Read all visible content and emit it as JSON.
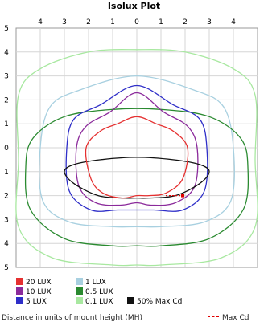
{
  "chart_data": {
    "type": "line",
    "title": "Isolux Plot",
    "xlim": [
      -5,
      5
    ],
    "ylim": [
      -5,
      5
    ],
    "x_ticks": [
      "4",
      "3",
      "2",
      "1",
      "0",
      "1",
      "2",
      "3",
      "4"
    ],
    "y_ticks": [
      "5",
      "4",
      "3",
      "2",
      "1",
      "0",
      "1",
      "2",
      "3",
      "4",
      "5"
    ],
    "grid": true,
    "legend_placement": "bottom",
    "series": [
      {
        "name": "20 LUX",
        "color": "#e53030",
        "points": [
          [
            -2.1,
            0.0
          ],
          [
            -1.5,
            0.7
          ],
          [
            -0.8,
            1.0
          ],
          [
            0,
            1.3
          ],
          [
            0.8,
            1.0
          ],
          [
            1.5,
            0.7
          ],
          [
            2.1,
            0.0
          ],
          [
            1.9,
            -1.3
          ],
          [
            1.2,
            -1.9
          ],
          [
            0.5,
            -2.0
          ],
          [
            0,
            -2.0
          ],
          [
            -0.6,
            -2.1
          ],
          [
            -1.4,
            -1.9
          ],
          [
            -1.9,
            -1.3
          ]
        ]
      },
      {
        "name": "10 LUX",
        "color": "#8b2a9b",
        "points": [
          [
            -2.5,
            0.0
          ],
          [
            -2.1,
            0.9
          ],
          [
            -1.1,
            1.5
          ],
          [
            0,
            2.3
          ],
          [
            1.1,
            1.5
          ],
          [
            2.1,
            0.9
          ],
          [
            2.5,
            0.0
          ],
          [
            2.4,
            -1.6
          ],
          [
            1.6,
            -2.3
          ],
          [
            0.6,
            -2.4
          ],
          [
            0,
            -2.3
          ],
          [
            -0.7,
            -2.4
          ],
          [
            -1.7,
            -2.3
          ],
          [
            -2.4,
            -1.6
          ]
        ]
      },
      {
        "name": "5 LUX",
        "color": "#2e2ec8",
        "points": [
          [
            -2.9,
            0.0
          ],
          [
            -2.6,
            1.2
          ],
          [
            -1.5,
            1.8
          ],
          [
            0,
            2.6
          ],
          [
            1.5,
            1.8
          ],
          [
            2.6,
            1.2
          ],
          [
            2.9,
            0.0
          ],
          [
            2.8,
            -1.8
          ],
          [
            1.9,
            -2.6
          ],
          [
            0.7,
            -2.6
          ],
          [
            0,
            -2.6
          ],
          [
            -0.8,
            -2.6
          ],
          [
            -1.9,
            -2.6
          ],
          [
            -2.8,
            -1.8
          ]
        ]
      },
      {
        "name": "1 LUX",
        "color": "#a8d0e0",
        "points": [
          [
            -4.0,
            0.0
          ],
          [
            -3.6,
            1.7
          ],
          [
            -2.4,
            2.4
          ],
          [
            0,
            3.0
          ],
          [
            2.4,
            2.4
          ],
          [
            3.6,
            1.7
          ],
          [
            4.0,
            0.0
          ],
          [
            3.9,
            -2.2
          ],
          [
            2.8,
            -3.1
          ],
          [
            1.0,
            -3.3
          ],
          [
            0,
            -3.3
          ],
          [
            -1.0,
            -3.3
          ],
          [
            -2.8,
            -3.1
          ],
          [
            -3.9,
            -2.2
          ]
        ]
      },
      {
        "name": "0.5 LUX",
        "color": "#2a8a30",
        "points": [
          [
            -4.6,
            -0.8
          ],
          [
            -4.3,
            0.4
          ],
          [
            -3.0,
            1.3
          ],
          [
            -1.0,
            1.6
          ],
          [
            1.0,
            1.6
          ],
          [
            3.0,
            1.3
          ],
          [
            4.3,
            0.4
          ],
          [
            4.6,
            -0.8
          ],
          [
            4.4,
            -2.6
          ],
          [
            3.0,
            -3.8
          ],
          [
            1.0,
            -4.1
          ],
          [
            0,
            -4.1
          ],
          [
            -1.0,
            -4.1
          ],
          [
            -3.0,
            -3.8
          ],
          [
            -4.4,
            -2.6
          ]
        ]
      },
      {
        "name": "0.1 LUX",
        "color": "#a8e8a0",
        "points": [
          [
            -4.9,
            -0.5
          ],
          [
            -4.9,
            2.2
          ],
          [
            -4.0,
            3.3
          ],
          [
            -2.0,
            4.0
          ],
          [
            0,
            4.1
          ],
          [
            2.0,
            4.0
          ],
          [
            4.0,
            3.3
          ],
          [
            4.9,
            2.2
          ],
          [
            4.9,
            -0.5
          ],
          [
            4.9,
            -3.3
          ],
          [
            3.5,
            -4.6
          ],
          [
            1.0,
            -4.9
          ],
          [
            0,
            -4.9
          ],
          [
            -1.0,
            -4.9
          ],
          [
            -3.5,
            -4.6
          ],
          [
            -4.9,
            -3.3
          ]
        ]
      },
      {
        "name": "50% Max Cd",
        "color": "#111111",
        "points": [
          [
            -3.0,
            -1.0
          ],
          [
            -2.6,
            -0.7
          ],
          [
            -1.5,
            -0.5
          ],
          [
            0,
            -0.4
          ],
          [
            1.5,
            -0.5
          ],
          [
            2.6,
            -0.7
          ],
          [
            3.0,
            -1.0
          ],
          [
            2.6,
            -1.5
          ],
          [
            1.6,
            -2.0
          ],
          [
            0.5,
            -2.1
          ],
          [
            0,
            -2.1
          ],
          [
            -0.6,
            -2.1
          ],
          [
            -1.6,
            -2.0
          ],
          [
            -2.6,
            -1.5
          ]
        ]
      }
    ],
    "max_cd_marker": {
      "name": "Max Cd",
      "color": "#e00000",
      "x": [
        1.2,
        1.9
      ],
      "y": -2.0
    },
    "footnote": "Distance in units of mount height (MH)"
  }
}
